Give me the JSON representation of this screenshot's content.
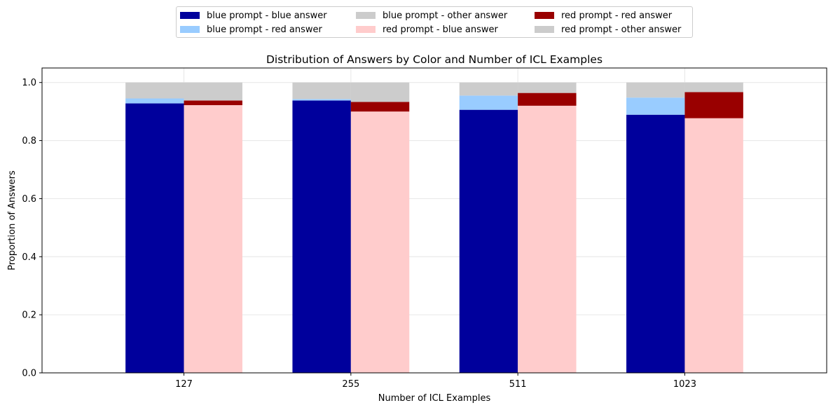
{
  "chart_data": {
    "type": "bar",
    "stacked": true,
    "grouped": true,
    "title": "Distribution of Answers by Color and Number of ICL Examples",
    "xlabel": "Number of ICL Examples",
    "ylabel": "Proportion of Answers",
    "categories": [
      "127",
      "255",
      "511",
      "1023"
    ],
    "ylim": [
      0,
      1.05
    ],
    "yticks": [
      "0.0",
      "0.2",
      "0.4",
      "0.6",
      "0.8",
      "1.0"
    ],
    "grid": true,
    "legend_position": "top-center",
    "groups": [
      {
        "name": "blue prompt",
        "series": [
          {
            "name": "blue prompt - blue answer",
            "color": "#00009c",
            "values": [
              0.928,
              0.938,
              0.906,
              0.889
            ]
          },
          {
            "name": "blue prompt - red answer",
            "color": "#99ccff",
            "values": [
              0.017,
              0.005,
              0.049,
              0.059
            ]
          },
          {
            "name": "blue prompt - other answer",
            "color": "#cccccc",
            "values": [
              0.055,
              0.057,
              0.045,
              0.052
            ]
          }
        ]
      },
      {
        "name": "red prompt",
        "series": [
          {
            "name": "red prompt - blue answer",
            "color": "#ffcccc",
            "values": [
              0.922,
              0.9,
              0.92,
              0.877
            ]
          },
          {
            "name": "red prompt - red answer",
            "color": "#990000",
            "values": [
              0.016,
              0.033,
              0.044,
              0.09
            ]
          },
          {
            "name": "red prompt - other answer",
            "color": "#cccccc",
            "values": [
              0.062,
              0.067,
              0.036,
              0.033
            ]
          }
        ]
      }
    ]
  },
  "legend": [
    {
      "label": "blue prompt - blue answer",
      "color": "#00009c"
    },
    {
      "label": "blue prompt - red answer",
      "color": "#99ccff"
    },
    {
      "label": "blue prompt - other answer",
      "color": "#cccccc"
    },
    {
      "label": "red prompt - blue answer",
      "color": "#ffcccc"
    },
    {
      "label": "red prompt - red answer",
      "color": "#990000"
    },
    {
      "label": "red prompt - other answer",
      "color": "#cccccc"
    }
  ]
}
